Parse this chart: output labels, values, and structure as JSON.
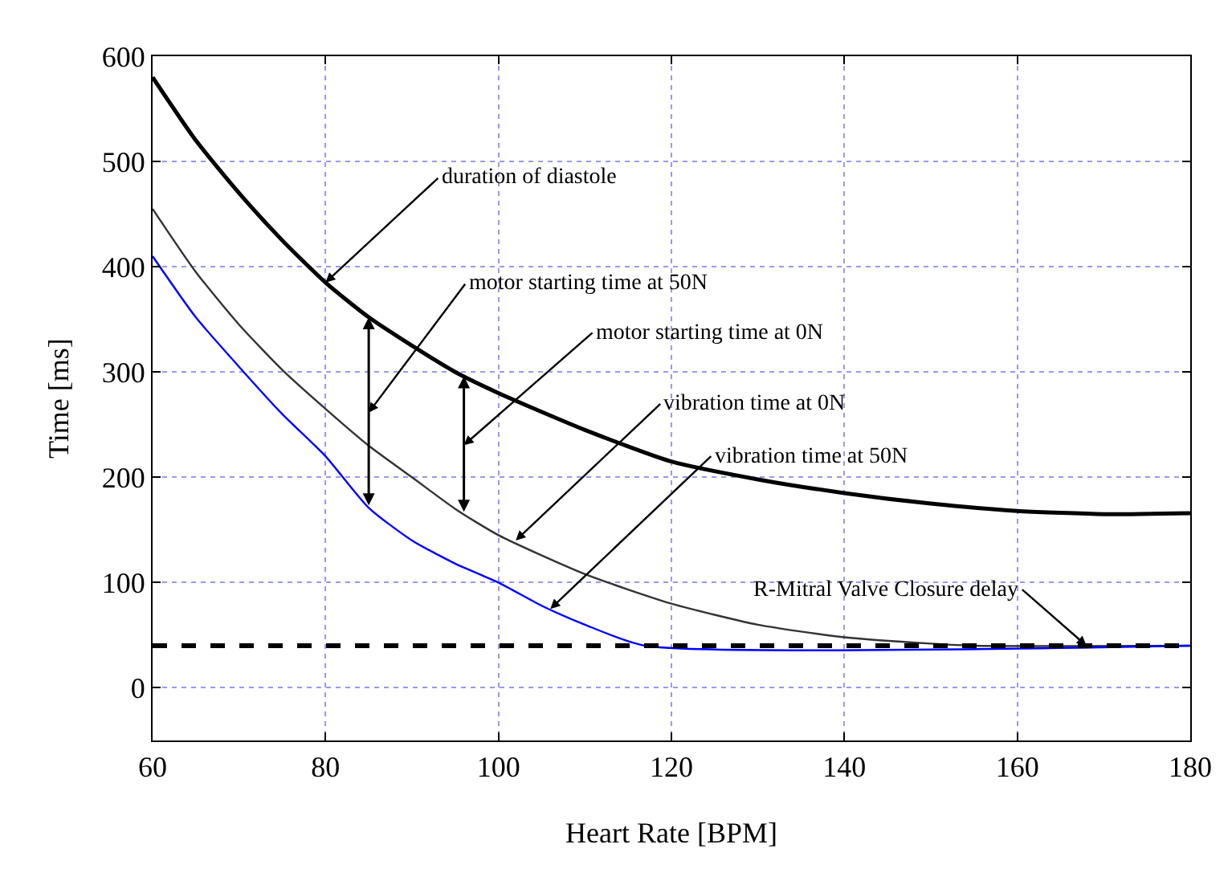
{
  "chart_data": {
    "type": "line",
    "xlabel": "Heart Rate [BPM]",
    "ylabel": "Time [ms]",
    "xlim": [
      60,
      180
    ],
    "xticks": [
      60,
      80,
      100,
      120,
      140,
      160,
      180
    ],
    "ylim": [
      -50,
      600
    ],
    "yticks": [
      0,
      100,
      200,
      300,
      400,
      500,
      600
    ],
    "grid": true,
    "legend": false,
    "marker": "none",
    "series": [
      {
        "color": "#000000",
        "x": [
          60,
          65,
          70,
          75,
          80,
          85,
          90,
          95,
          100,
          110,
          120,
          130,
          140,
          150,
          160,
          170,
          180
        ],
        "values": [
          580,
          520,
          470,
          425,
          385,
          352,
          325,
          300,
          280,
          245,
          215,
          198,
          185,
          175,
          168,
          165,
          166
        ]
      },
      {
        "color": "#333333",
        "x": [
          60,
          65,
          70,
          75,
          80,
          85,
          90,
          95,
          100,
          110,
          120,
          130,
          140,
          150,
          155,
          180
        ],
        "values": [
          455,
          395,
          345,
          302,
          265,
          230,
          200,
          170,
          145,
          108,
          80,
          60,
          48,
          42,
          40,
          40
        ]
      },
      {
        "color": "#0000ff",
        "x": [
          60,
          65,
          70,
          75,
          80,
          85,
          90,
          95,
          100,
          105,
          110,
          117,
          180
        ],
        "values": [
          410,
          352,
          305,
          260,
          220,
          171,
          140,
          118,
          100,
          78,
          60,
          40,
          40
        ]
      },
      {
        "color": "#000000",
        "line_style": "dashed",
        "x": [
          60,
          180
        ],
        "values": [
          40,
          40
        ]
      }
    ],
    "annotations": [
      {
        "text": "duration of diastole",
        "x": 80,
        "y": 385
      },
      "motor starting time at 50N",
      "motor starting time at 0N",
      {
        "text": "vibration time at 0N",
        "x": 102,
        "y": 140
      },
      {
        "text": "vibration time at 50N",
        "x": 106,
        "y": 75
      },
      {
        "text": "R-Mitral Valve Closure delay",
        "x": 168,
        "y": 40
      }
    ]
  }
}
